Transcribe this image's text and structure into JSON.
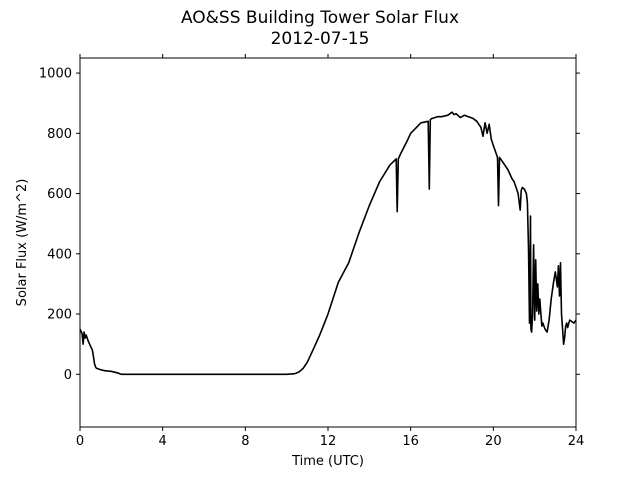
{
  "chart_data": {
    "type": "line",
    "title": "AO&SS Building Tower Solar Flux",
    "subtitle": "2012-07-15",
    "xlabel": "Time (UTC)",
    "ylabel": "Solar Flux (W/m^2)",
    "xlim": [
      0,
      24
    ],
    "ylim": [
      -175,
      1050
    ],
    "xticks": [
      0,
      4,
      8,
      12,
      16,
      20,
      24
    ],
    "yticks": [
      0,
      200,
      400,
      600,
      800,
      1000
    ],
    "grid": false,
    "legend": "none",
    "line_color": "#000000",
    "series": [
      {
        "x": [
          0.0,
          0.1,
          0.15,
          0.2,
          0.25,
          0.3,
          0.4,
          0.5,
          0.6,
          0.65,
          0.7,
          0.75,
          0.8,
          1.0,
          1.2,
          1.5,
          1.8,
          2.0,
          3.0,
          5.0,
          8.0,
          10.0,
          10.4,
          10.6,
          10.8,
          11.0,
          11.2,
          11.4,
          11.6,
          11.8,
          12.0,
          12.5,
          13.0,
          13.5,
          14.0,
          14.5,
          15.0,
          15.3,
          15.35,
          15.4,
          15.5,
          15.8,
          16.0,
          16.5,
          16.85,
          16.9,
          16.95,
          17.0,
          17.3,
          17.5,
          17.8,
          18.0,
          18.1,
          18.2,
          18.4,
          18.6,
          18.8,
          19.0,
          19.2,
          19.4,
          19.5,
          19.6,
          19.7,
          19.8,
          19.9,
          20.0,
          20.1,
          20.2,
          20.25,
          20.3,
          20.5,
          20.7,
          20.9,
          21.0,
          21.1,
          21.2,
          21.3,
          21.35,
          21.4,
          21.5,
          21.6,
          21.65,
          21.7,
          21.75,
          21.8,
          21.82,
          21.85,
          21.9,
          21.95,
          22.0,
          22.05,
          22.1,
          22.15,
          22.2,
          22.25,
          22.3,
          22.35,
          22.4,
          22.5,
          22.6,
          22.7,
          22.8,
          22.9,
          23.0,
          23.1,
          23.15,
          23.2,
          23.25,
          23.3,
          23.35,
          23.4,
          23.45,
          23.5,
          23.55,
          23.6,
          23.65,
          23.7,
          23.8,
          23.9,
          24.0
        ],
        "y": [
          150,
          135,
          100,
          140,
          120,
          130,
          110,
          95,
          80,
          60,
          35,
          25,
          20,
          15,
          12,
          10,
          5,
          0,
          0,
          0,
          0,
          0,
          2,
          8,
          20,
          40,
          70,
          100,
          130,
          165,
          200,
          305,
          370,
          470,
          560,
          640,
          695,
          715,
          540,
          715,
          730,
          770,
          800,
          835,
          840,
          615,
          845,
          848,
          855,
          855,
          860,
          870,
          862,
          865,
          852,
          860,
          855,
          850,
          840,
          820,
          790,
          835,
          800,
          830,
          780,
          760,
          740,
          720,
          560,
          720,
          700,
          680,
          650,
          640,
          620,
          600,
          545,
          610,
          620,
          615,
          600,
          570,
          420,
          170,
          525,
          150,
          140,
          200,
          430,
          180,
          380,
          210,
          300,
          200,
          250,
          200,
          160,
          170,
          150,
          140,
          180,
          250,
          300,
          340,
          290,
          360,
          260,
          370,
          200,
          150,
          100,
          120,
          160,
          170,
          155,
          170,
          180,
          175,
          170,
          180
        ]
      }
    ]
  }
}
